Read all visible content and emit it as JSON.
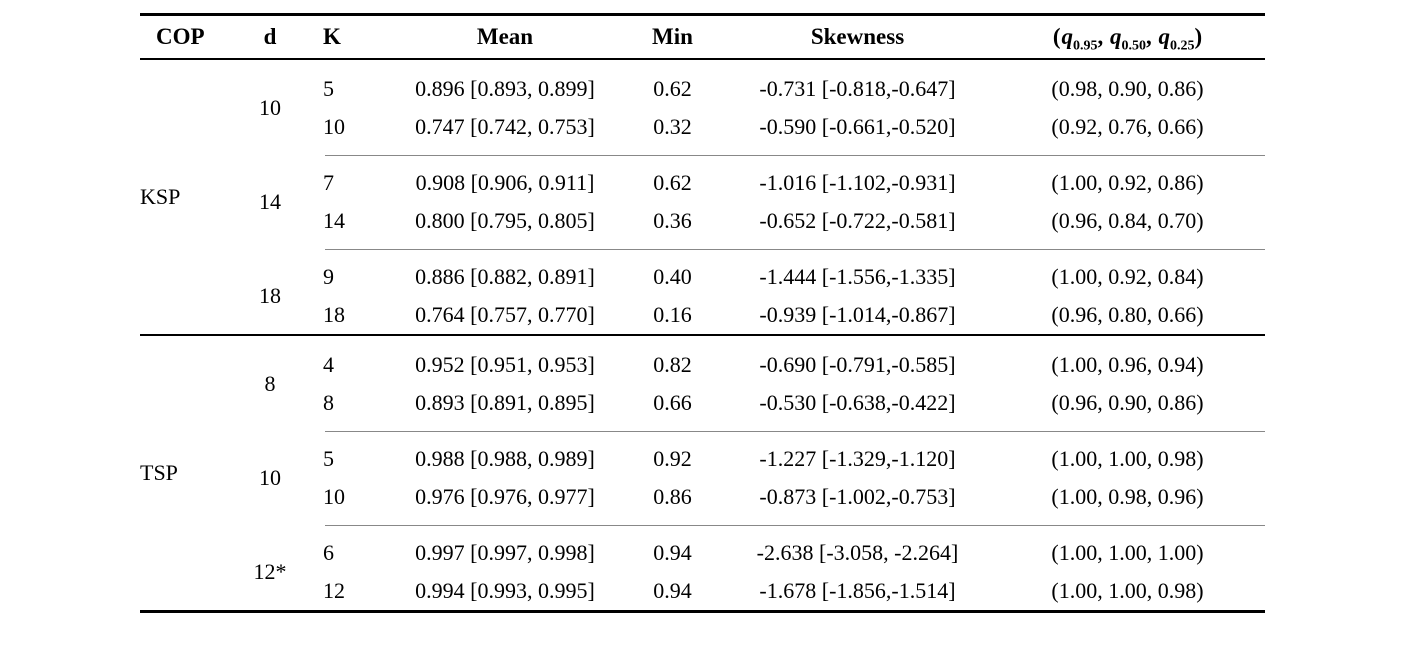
{
  "header": {
    "cop": "COP",
    "d": "d",
    "k": "K",
    "mean": "Mean",
    "min": "Min",
    "skewness": "Skewness",
    "quantiles": {
      "open": "(",
      "q": "q",
      "s1": "0.95",
      "c1": ", ",
      "s2": "0.50",
      "c2": ", ",
      "s3": "0.25",
      "close": ")"
    }
  },
  "sections": [
    {
      "cop": "KSP",
      "groups": [
        {
          "d": "10",
          "rows": [
            {
              "k": "5",
              "mean": "0.896 [0.893, 0.899]",
              "min": "0.62",
              "skewness": "-0.731 [-0.818,-0.647]",
              "quantiles": "(0.98, 0.90, 0.86)"
            },
            {
              "k": "10",
              "mean": "0.747 [0.742, 0.753]",
              "min": "0.32",
              "skewness": "-0.590 [-0.661,-0.520]",
              "quantiles": "(0.92, 0.76, 0.66)"
            }
          ]
        },
        {
          "d": "14",
          "rows": [
            {
              "k": "7",
              "mean": "0.908 [0.906, 0.911]",
              "min": "0.62",
              "skewness": "-1.016 [-1.102,-0.931]",
              "quantiles": "(1.00, 0.92, 0.86)"
            },
            {
              "k": "14",
              "mean": "0.800 [0.795, 0.805]",
              "min": "0.36",
              "skewness": "-0.652 [-0.722,-0.581]",
              "quantiles": "(0.96, 0.84, 0.70)"
            }
          ]
        },
        {
          "d": "18",
          "rows": [
            {
              "k": "9",
              "mean": "0.886 [0.882, 0.891]",
              "min": "0.40",
              "skewness": "-1.444 [-1.556,-1.335]",
              "quantiles": "(1.00, 0.92, 0.84)"
            },
            {
              "k": "18",
              "mean": "0.764 [0.757, 0.770]",
              "min": "0.16",
              "skewness": "-0.939 [-1.014,-0.867]",
              "quantiles": "(0.96, 0.80, 0.66)"
            }
          ]
        }
      ]
    },
    {
      "cop": "TSP",
      "groups": [
        {
          "d": "8",
          "rows": [
            {
              "k": "4",
              "mean": "0.952 [0.951, 0.953]",
              "min": "0.82",
              "skewness": "-0.690 [-0.791,-0.585]",
              "quantiles": "(1.00, 0.96, 0.94)"
            },
            {
              "k": "8",
              "mean": "0.893 [0.891, 0.895]",
              "min": "0.66",
              "skewness": "-0.530 [-0.638,-0.422]",
              "quantiles": "(0.96, 0.90, 0.86)"
            }
          ]
        },
        {
          "d": "10",
          "rows": [
            {
              "k": "5",
              "mean": "0.988 [0.988, 0.989]",
              "min": "0.92",
              "skewness": "-1.227 [-1.329,-1.120]",
              "quantiles": "(1.00, 1.00, 0.98)"
            },
            {
              "k": "10",
              "mean": "0.976 [0.976, 0.977]",
              "min": "0.86",
              "skewness": "-0.873 [-1.002,-0.753]",
              "quantiles": "(1.00, 0.98, 0.96)"
            }
          ]
        },
        {
          "d": "12*",
          "rows": [
            {
              "k": "6",
              "mean": "0.997 [0.997, 0.998]",
              "min": "0.94",
              "skewness": "-2.638 [-3.058, -2.264]",
              "quantiles": "(1.00, 1.00, 1.00)"
            },
            {
              "k": "12",
              "mean": "0.994 [0.993, 0.995]",
              "min": "0.94",
              "skewness": "-1.678 [-1.856,-1.514]",
              "quantiles": "(1.00, 1.00, 0.98)"
            }
          ]
        }
      ]
    }
  ],
  "colors": {
    "text": "#000000",
    "rule": "#000000",
    "group_rule": "#888888",
    "background": "#ffffff"
  }
}
